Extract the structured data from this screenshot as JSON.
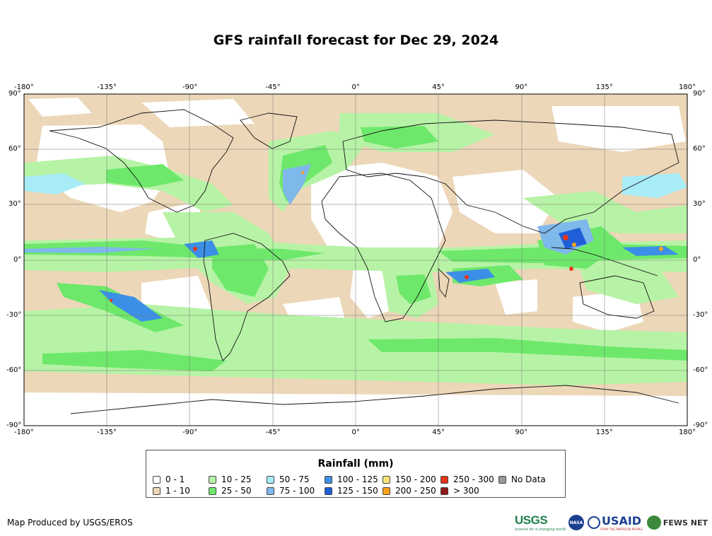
{
  "title": "GFS rainfall forecast for Dec 29, 2024",
  "map": {
    "lon_ticks": [
      "-180°",
      "-135°",
      "-90°",
      "-45°",
      "0°",
      "45°",
      "90°",
      "135°",
      "180°"
    ],
    "lat_ticks": [
      "90°",
      "60°",
      "30°",
      "0°",
      "-30°",
      "-60°",
      "-90°"
    ],
    "lon_values": [
      -180,
      -135,
      -90,
      -45,
      0,
      45,
      90,
      135,
      180
    ],
    "lat_values": [
      90,
      60,
      30,
      0,
      -30,
      -60,
      -90
    ]
  },
  "legend": {
    "title": "Rainfall (mm)",
    "items": [
      {
        "label": "0 - 1",
        "color": "#ffffff"
      },
      {
        "label": "1 - 10",
        "color": "#ecd7b8"
      },
      {
        "label": "10 - 25",
        "color": "#b7f3a6"
      },
      {
        "label": "25 - 50",
        "color": "#6ee86b"
      },
      {
        "label": "50 - 75",
        "color": "#a8ecf7"
      },
      {
        "label": "75 - 100",
        "color": "#7fb8ea"
      },
      {
        "label": "100 - 125",
        "color": "#3c8fe6"
      },
      {
        "label": "125 - 150",
        "color": "#1e5fd8"
      },
      {
        "label": "150 - 200",
        "color": "#fbe37a"
      },
      {
        "label": "200 - 250",
        "color": "#f7a21a"
      },
      {
        "label": "250 - 300",
        "color": "#e8361a"
      },
      {
        "label": "> 300",
        "color": "#8e1a1a"
      },
      {
        "label": "No Data",
        "color": "#999999"
      }
    ]
  },
  "credit": "Map Produced by USGS/EROS",
  "logos": {
    "usgs": "USGS",
    "usgs_tagline": "science for a changing world",
    "nasa": "NASA",
    "usaid": "USAID",
    "usaid_tagline": "FROM THE AMERICAN PEOPLE",
    "fews": "FEWS NET"
  }
}
